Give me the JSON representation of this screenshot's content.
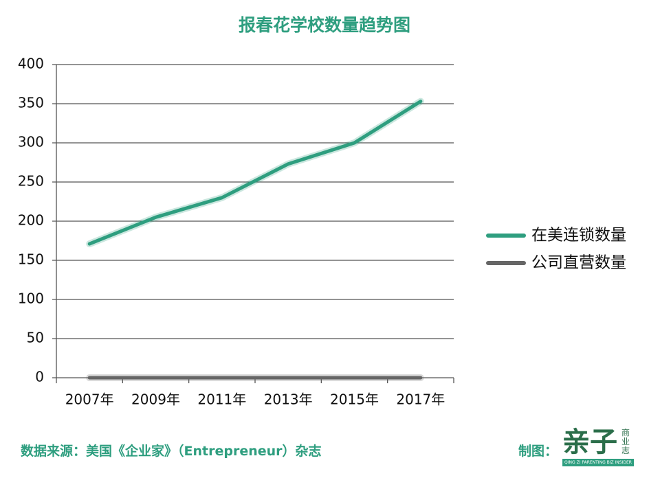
{
  "chart_data": {
    "type": "line",
    "title": "报春花学校数量趋势图",
    "categories": [
      "2007年",
      "2009年",
      "2011年",
      "2013年",
      "2015年",
      "2017年"
    ],
    "series": [
      {
        "name": "在美连锁数量",
        "color": "#2e9e7f",
        "values": [
          171,
          205,
          230,
          273,
          300,
          353
        ]
      },
      {
        "name": "公司直营数量",
        "color": "#666666",
        "values": [
          0,
          0,
          0,
          0,
          0,
          0
        ]
      }
    ],
    "ylim": [
      0,
      400
    ],
    "yticks": [
      0,
      50,
      100,
      150,
      200,
      250,
      300,
      350,
      400
    ],
    "grid": true,
    "legend": "right"
  },
  "footer": {
    "source": "数据来源：美国《企业家》（Entrepreneur）杂志",
    "credit": "制图：",
    "logo": {
      "main": "亲子",
      "side": "商业志",
      "tagline": "QING ZI PARENTING BIZ INSIDER"
    }
  }
}
